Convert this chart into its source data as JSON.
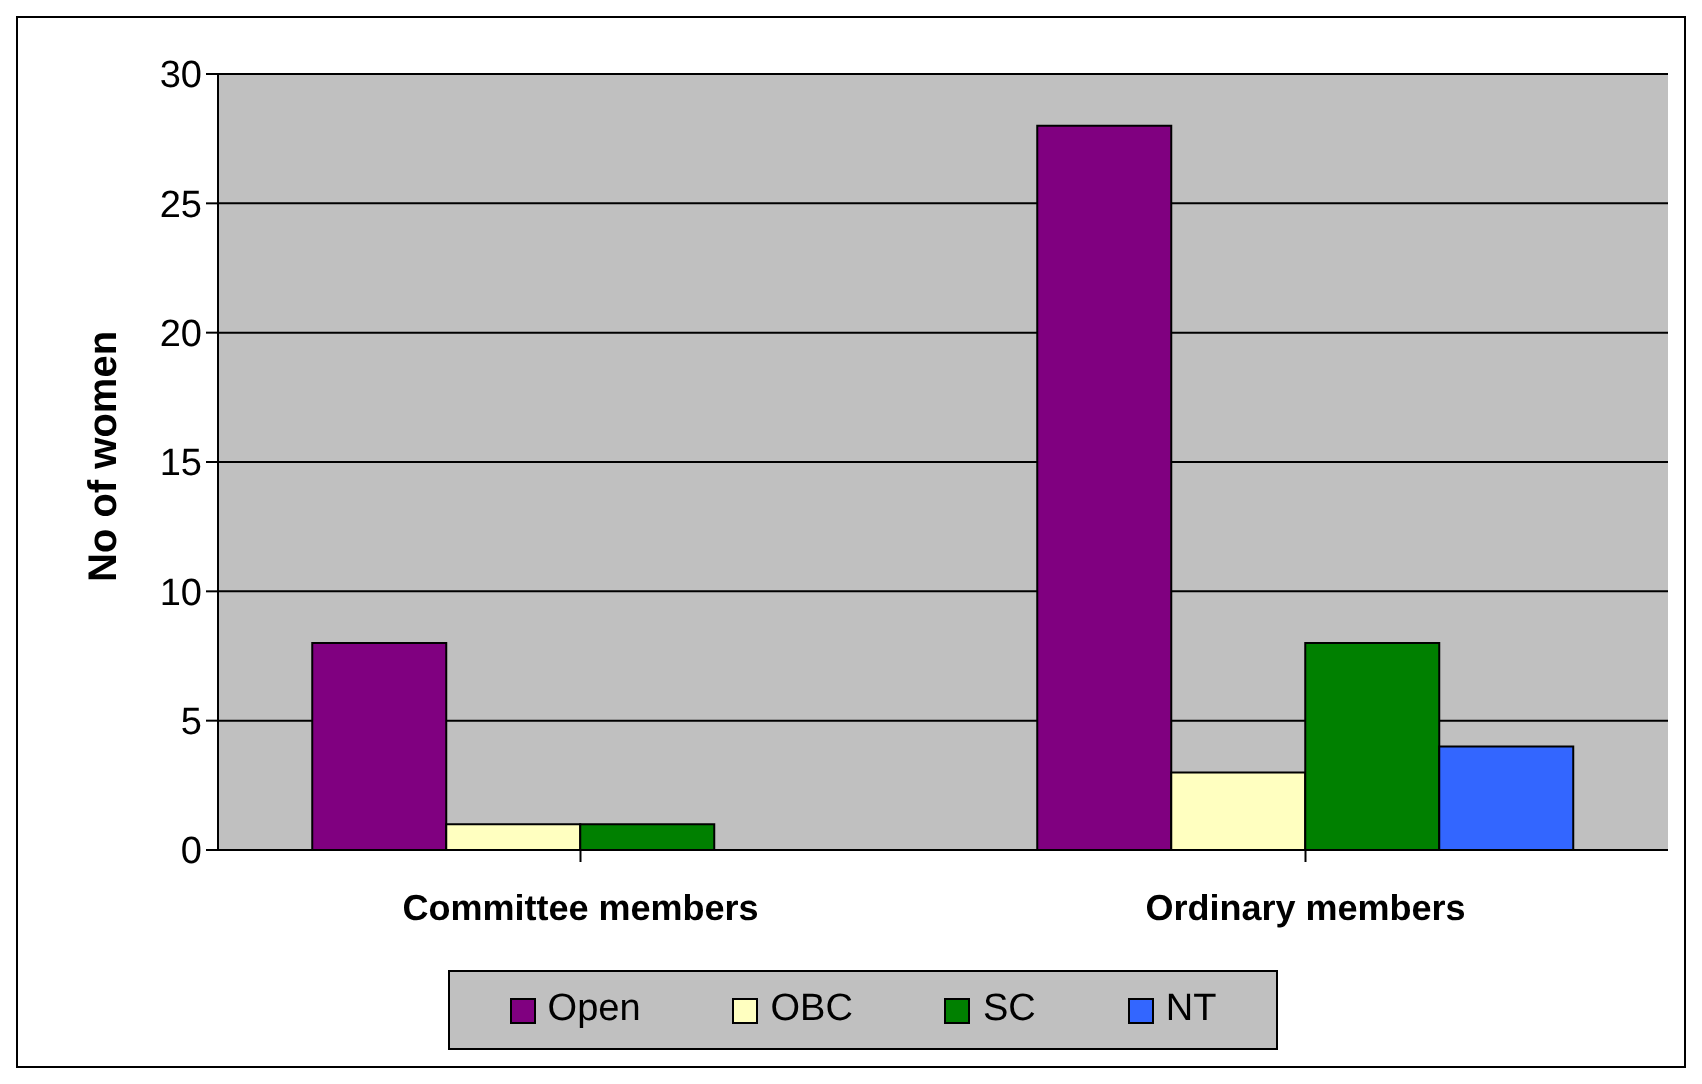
{
  "chart_data": {
    "type": "bar",
    "ylabel": "No of women",
    "categories": [
      "Committee members",
      "Ordinary members"
    ],
    "series": [
      {
        "name": "Open",
        "color": "#800080",
        "values": [
          8,
          28
        ]
      },
      {
        "name": "OBC",
        "color": "#ffffc0",
        "values": [
          1,
          3
        ]
      },
      {
        "name": "SC",
        "color": "#008000",
        "values": [
          1,
          8
        ]
      },
      {
        "name": "NT",
        "color": "#3366ff",
        "values": [
          0,
          4
        ]
      }
    ],
    "ylim": [
      0,
      30
    ],
    "yticks": [
      0,
      5,
      10,
      15,
      20,
      25,
      30
    ],
    "grid": "y",
    "legend": "bottom"
  }
}
